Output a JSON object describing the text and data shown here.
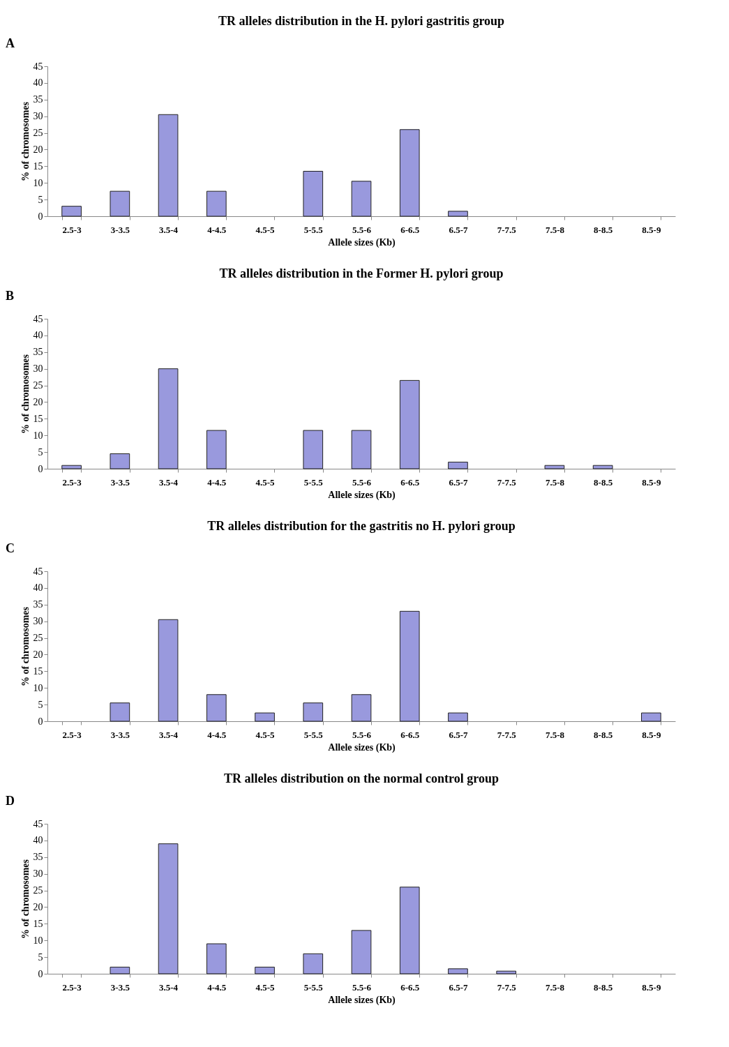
{
  "chart_data": [
    {
      "type": "bar",
      "title": "TR alleles distribution in the H. pylori gastritis group",
      "xlabel": "Allele sizes (Kb)",
      "ylabel": "% of chromosomes",
      "annotations": [
        "A"
      ],
      "categories": [
        "2.5-3",
        "3-3.5",
        "3.5-4",
        "4-4.5",
        "4.5-5",
        "5-5.5",
        "5.5-6",
        "6-6.5",
        "6.5-7",
        "7-7.5",
        "7.5-8",
        "8-8.5",
        "8.5-9"
      ],
      "color": "#9999dd",
      "values": [
        3,
        7.5,
        30.5,
        7.5,
        0,
        13.5,
        10.5,
        26,
        1.5,
        0,
        0,
        0,
        0
      ],
      "ylim": [
        0,
        45
      ],
      "yticks": [
        0,
        5,
        10,
        15,
        20,
        25,
        30,
        35,
        40,
        45
      ],
      "grid": false
    },
    {
      "type": "bar",
      "title": "TR alleles distribution in the Former H. pylori group",
      "xlabel": "Allele sizes (Kb)",
      "ylabel": "% of chromosomes",
      "annotations": [
        "B"
      ],
      "categories": [
        "2.5-3",
        "3-3.5",
        "3.5-4",
        "4-4.5",
        "4.5-5",
        "5-5.5",
        "5.5-6",
        "6-6.5",
        "6.5-7",
        "7-7.5",
        "7.5-8",
        "8-8.5",
        "8.5-9"
      ],
      "color": "#9999dd",
      "values": [
        1,
        4.5,
        30,
        11.5,
        0,
        11.5,
        11.5,
        26.5,
        2,
        0,
        1,
        1,
        0
      ],
      "ylim": [
        0,
        45
      ],
      "yticks": [
        0,
        5,
        10,
        15,
        20,
        25,
        30,
        35,
        40,
        45
      ],
      "grid": false
    },
    {
      "type": "bar",
      "title": "TR alleles distribution for the gastritis no H. pylori group",
      "xlabel": "Allele sizes (Kb)",
      "ylabel": "% of chromosomes",
      "annotations": [
        "C"
      ],
      "categories": [
        "2.5-3",
        "3-3.5",
        "3.5-4",
        "4-4.5",
        "4.5-5",
        "5-5.5",
        "5.5-6",
        "6-6.5",
        "6.5-7",
        "7-7.5",
        "7.5-8",
        "8-8.5",
        "8.5-9"
      ],
      "color": "#9999dd",
      "values": [
        0,
        5.5,
        30.5,
        8,
        2.5,
        5.5,
        8,
        33,
        2.5,
        0,
        0,
        0,
        2.5
      ],
      "ylim": [
        0,
        45
      ],
      "yticks": [
        0,
        5,
        10,
        15,
        20,
        25,
        30,
        35,
        40,
        45
      ],
      "grid": false
    },
    {
      "type": "bar",
      "title": "TR alleles distribution on the normal control group",
      "xlabel": "Allele sizes (Kb)",
      "ylabel": "% of chromosomes",
      "annotations": [
        "D"
      ],
      "categories": [
        "2.5-3",
        "3-3.5",
        "3.5-4",
        "4-4.5",
        "4.5-5",
        "5-5.5",
        "5.5-6",
        "6-6.5",
        "6.5-7",
        "7-7.5",
        "7.5-8",
        "8-8.5",
        "8.5-9"
      ],
      "color": "#9999dd",
      "values": [
        0,
        2,
        39,
        9,
        2,
        6,
        13,
        26,
        1.5,
        0.8,
        0,
        0,
        0
      ],
      "ylim": [
        0,
        45
      ],
      "yticks": [
        0,
        5,
        10,
        15,
        20,
        25,
        30,
        35,
        40,
        45
      ],
      "grid": false
    }
  ]
}
